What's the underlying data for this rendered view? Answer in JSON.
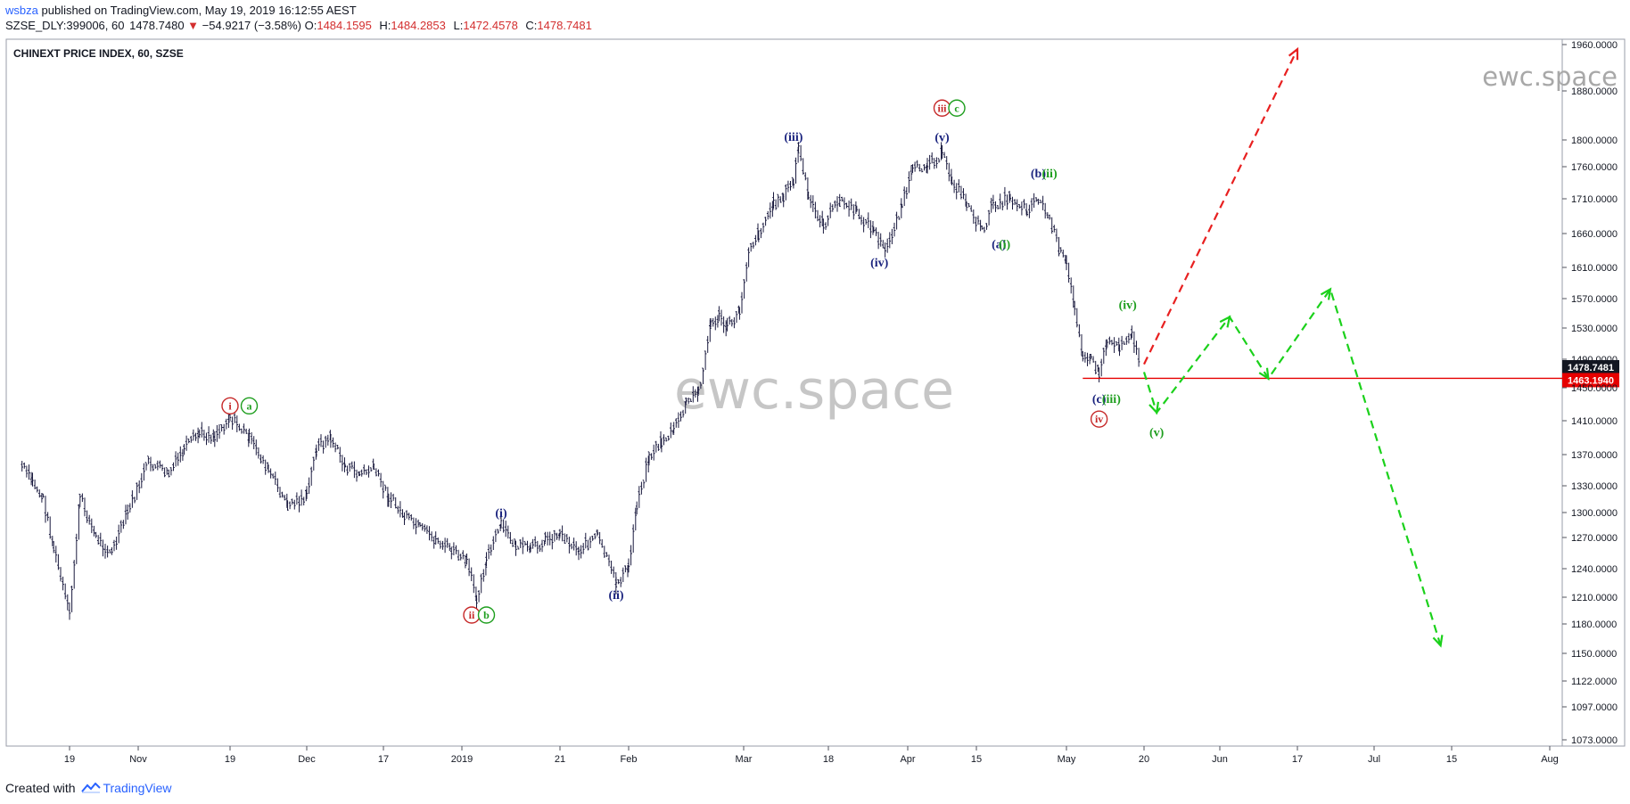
{
  "header": {
    "user": "wsbza",
    "published": "published on TradingView.com, May 19, 2019 16:12:55 AEST",
    "symbol": "SZSE_DLY:399006, 60",
    "last": "1478.7480",
    "direction_icon": "down-triangle-icon",
    "change": "−54.9217 (−3.58%)",
    "open_label": "O:",
    "open": "1484.1595",
    "high_label": "H:",
    "high": "1484.2853",
    "low_label": "L:",
    "low": "1472.4578",
    "close_label": "C:",
    "close": "1478.7481"
  },
  "footer": {
    "created_with": "Created with",
    "brand": "TradingView"
  },
  "colors": {
    "candles": "#1a1a3e",
    "down": "#d32f2f",
    "wave_blue": "#1a237e",
    "wave_green": "#1e9e1e",
    "wave_red": "#c62828",
    "projection_green": "#1bd11b",
    "projection_red": "#e82020",
    "support_line": "#e60000",
    "price_tag": "#131722",
    "support_tag": "#e60000",
    "watermark": "#a8a8a8"
  },
  "chart_data": {
    "type": "line",
    "title": "CHINEXT PRICE INDEX, 60, SZSE",
    "watermark": "ewc.space",
    "y_ticks": [
      1073,
      1097,
      1122,
      1150,
      1180,
      1210,
      1240,
      1270,
      1300,
      1330,
      1370,
      1410,
      1450,
      1490,
      1530,
      1570,
      1610,
      1660,
      1710,
      1760,
      1800,
      1880,
      1960
    ],
    "y_tick_labels": [
      "1073.0000",
      "1097.0000",
      "1122.0000",
      "1150.0000",
      "1180.0000",
      "1210.0000",
      "1240.0000",
      "1270.0000",
      "1300.0000",
      "1330.0000",
      "1370.0000",
      "1410.0000",
      "1450.0000",
      "1490.0000",
      "1530.0000",
      "1570.0000",
      "1610.0000",
      "1660.0000",
      "1710.0000",
      "1760.0000",
      "1800.0000",
      "1880.0000",
      "1960.0000"
    ],
    "x_ticks": [
      {
        "label": "19",
        "date": "2018-10-19"
      },
      {
        "label": "Nov",
        "date": "2018-11-01"
      },
      {
        "label": "19",
        "date": "2018-11-19"
      },
      {
        "label": "Dec",
        "date": "2018-12-01"
      },
      {
        "label": "17",
        "date": "2018-12-17"
      },
      {
        "label": "2019",
        "date": "2019-01-01"
      },
      {
        "label": "21",
        "date": "2019-01-21"
      },
      {
        "label": "Feb",
        "date": "2019-02-01"
      },
      {
        "label": "Mar",
        "date": "2019-03-01"
      },
      {
        "label": "18",
        "date": "2019-03-18"
      },
      {
        "label": "Apr",
        "date": "2019-04-01"
      },
      {
        "label": "15",
        "date": "2019-04-15"
      },
      {
        "label": "May",
        "date": "2019-05-01"
      },
      {
        "label": "20",
        "date": "2019-05-20"
      },
      {
        "label": "Jun",
        "date": "2019-06-01"
      },
      {
        "label": "17",
        "date": "2019-06-17"
      },
      {
        "label": "Jul",
        "date": "2019-07-01"
      },
      {
        "label": "15",
        "date": "2019-07-15"
      },
      {
        "label": "Aug",
        "date": "2019-08-01"
      }
    ],
    "x_range": [
      "2018-10-10",
      "2019-08-02"
    ],
    "price_path": [
      [
        "2018-10-10",
        1355
      ],
      [
        "2018-10-12",
        1335
      ],
      [
        "2018-10-14",
        1315
      ],
      [
        "2018-10-16",
        1260
      ],
      [
        "2018-10-19",
        1190
      ],
      [
        "2018-10-21",
        1318
      ],
      [
        "2018-10-24",
        1270
      ],
      [
        "2018-10-27",
        1255
      ],
      [
        "2018-10-30",
        1300
      ],
      [
        "2018-11-03",
        1360
      ],
      [
        "2018-11-07",
        1345
      ],
      [
        "2018-11-10",
        1375
      ],
      [
        "2018-11-13",
        1395
      ],
      [
        "2018-11-16",
        1392
      ],
      [
        "2018-11-19",
        1415
      ],
      [
        "2018-11-22",
        1390
      ],
      [
        "2018-11-25",
        1350
      ],
      [
        "2018-11-28",
        1308
      ],
      [
        "2018-12-01",
        1318
      ],
      [
        "2018-12-03",
        1378
      ],
      [
        "2018-12-06",
        1390
      ],
      [
        "2018-12-09",
        1355
      ],
      [
        "2018-12-12",
        1345
      ],
      [
        "2018-12-15",
        1352
      ],
      [
        "2018-12-18",
        1318
      ],
      [
        "2018-12-21",
        1295
      ],
      [
        "2018-12-24",
        1280
      ],
      [
        "2018-12-27",
        1268
      ],
      [
        "2018-12-30",
        1258
      ],
      [
        "2019-01-02",
        1245
      ],
      [
        "2019-01-04",
        1210
      ],
      [
        "2019-01-06",
        1248
      ],
      [
        "2019-01-09",
        1285
      ],
      [
        "2019-01-12",
        1262
      ],
      [
        "2019-01-15",
        1258
      ],
      [
        "2019-01-18",
        1268
      ],
      [
        "2019-01-21",
        1275
      ],
      [
        "2019-01-24",
        1258
      ],
      [
        "2019-01-27",
        1272
      ],
      [
        "2019-01-30",
        1225
      ],
      [
        "2019-02-01",
        1240
      ],
      [
        "2019-02-03",
        1310
      ],
      [
        "2019-02-06",
        1368
      ],
      [
        "2019-02-09",
        1385
      ],
      [
        "2019-02-12",
        1398
      ],
      [
        "2019-02-15",
        1430
      ],
      [
        "2019-02-18",
        1445
      ],
      [
        "2019-02-21",
        1535
      ],
      [
        "2019-02-23",
        1545
      ],
      [
        "2019-02-25",
        1530
      ],
      [
        "2019-02-28",
        1552
      ],
      [
        "2019-03-02",
        1638
      ],
      [
        "2019-03-04",
        1660
      ],
      [
        "2019-03-07",
        1702
      ],
      [
        "2019-03-09",
        1715
      ],
      [
        "2019-03-11",
        1738
      ],
      [
        "2019-03-12",
        1788
      ],
      [
        "2019-03-14",
        1712
      ],
      [
        "2019-03-17",
        1672
      ],
      [
        "2019-03-20",
        1708
      ],
      [
        "2019-03-23",
        1690
      ],
      [
        "2019-03-26",
        1665
      ],
      [
        "2019-03-28",
        1632
      ],
      [
        "2019-03-31",
        1702
      ],
      [
        "2019-04-02",
        1752
      ],
      [
        "2019-04-05",
        1765
      ],
      [
        "2019-04-08",
        1778
      ],
      [
        "2019-04-10",
        1740
      ],
      [
        "2019-04-13",
        1705
      ],
      [
        "2019-04-16",
        1662
      ],
      [
        "2019-04-18",
        1702
      ],
      [
        "2019-04-21",
        1712
      ],
      [
        "2019-04-24",
        1695
      ],
      [
        "2019-04-26",
        1712
      ],
      [
        "2019-04-28",
        1680
      ],
      [
        "2019-04-30",
        1630
      ],
      [
        "2019-05-01",
        1612
      ],
      [
        "2019-05-03",
        1560
      ],
      [
        "2019-05-05",
        1498
      ],
      [
        "2019-05-07",
        1488
      ],
      [
        "2019-05-09",
        1470
      ],
      [
        "2019-05-11",
        1515
      ],
      [
        "2019-05-14",
        1508
      ],
      [
        "2019-05-17",
        1525
      ],
      [
        "2019-05-19",
        1478
      ]
    ],
    "last_price": 1478.7481,
    "last_price_label": "1478.7481",
    "support_level": 1463.194,
    "support_label": "1463.1940",
    "support_start": "2019-05-05",
    "projections": [
      {
        "color": "red",
        "points": [
          [
            "2019-05-20",
            1483
          ],
          [
            "2019-06-17",
            1952
          ]
        ]
      },
      {
        "color": "green",
        "points": [
          [
            "2019-05-20",
            1472
          ],
          [
            "2019-05-22",
            1420
          ],
          [
            "2019-06-03",
            1545
          ],
          [
            "2019-06-11",
            1463
          ],
          [
            "2019-06-23",
            1582
          ],
          [
            "2019-07-13",
            1158
          ]
        ]
      }
    ],
    "wave_labels": [
      {
        "text": "i",
        "date": "2018-11-19",
        "price": 1428,
        "color": "red",
        "circled": true
      },
      {
        "text": "a",
        "date": "2018-11-22",
        "price": 1428,
        "color": "green",
        "circled": true
      },
      {
        "text": "ii",
        "date": "2019-01-03",
        "price": 1190,
        "color": "red",
        "circled": true
      },
      {
        "text": "b",
        "date": "2019-01-06",
        "price": 1190,
        "color": "green",
        "circled": true
      },
      {
        "text": "(i)",
        "date": "2019-01-09",
        "price": 1300,
        "color": "blue",
        "circled": false
      },
      {
        "text": "(ii)",
        "date": "2019-01-30",
        "price": 1213,
        "color": "blue",
        "circled": false
      },
      {
        "text": "(iii)",
        "date": "2019-03-11",
        "price": 1806,
        "color": "blue",
        "circled": false
      },
      {
        "text": "(iv)",
        "date": "2019-03-27",
        "price": 1618,
        "color": "blue",
        "circled": false
      },
      {
        "text": "iii",
        "date": "2019-04-08",
        "price": 1852,
        "color": "red",
        "circled": true
      },
      {
        "text": "c",
        "date": "2019-04-11",
        "price": 1852,
        "color": "green",
        "circled": true
      },
      {
        "text": "(v)",
        "date": "2019-04-08",
        "price": 1805,
        "color": "blue",
        "circled": false
      },
      {
        "text": "(b)",
        "date": "2019-04-26",
        "price": 1750,
        "color": "blue",
        "circled": false
      },
      {
        "text": "(ii)",
        "date": "2019-04-28",
        "price": 1750,
        "color": "green",
        "circled": false
      },
      {
        "text": "(a)",
        "date": "2019-04-19",
        "price": 1645,
        "color": "blue",
        "circled": false
      },
      {
        "text": "(i)",
        "date": "2019-04-20",
        "price": 1645,
        "color": "green",
        "circled": false
      },
      {
        "text": "(iv)",
        "date": "2019-05-16",
        "price": 1562,
        "color": "green",
        "circled": false
      },
      {
        "text": "(c)",
        "date": "2019-05-09",
        "price": 1437,
        "color": "blue",
        "circled": false
      },
      {
        "text": "(iii)",
        "date": "2019-05-12",
        "price": 1437,
        "color": "green",
        "circled": false
      },
      {
        "text": "iv",
        "date": "2019-05-09",
        "price": 1412,
        "color": "red",
        "circled": true
      },
      {
        "text": "(v)",
        "date": "2019-05-22",
        "price": 1397,
        "color": "green",
        "circled": false
      }
    ]
  }
}
